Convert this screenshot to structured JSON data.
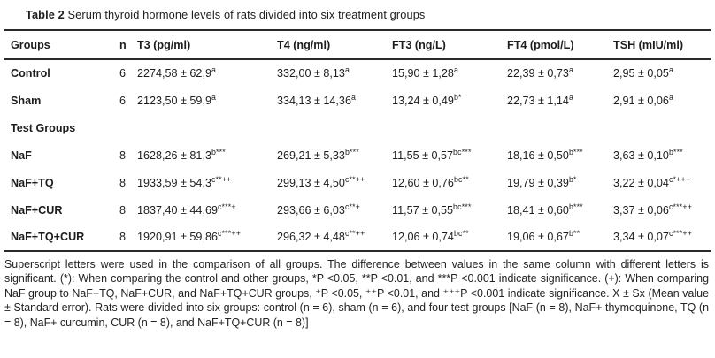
{
  "title": {
    "label": "Table 2",
    "text": " Serum thyroid hormone levels of rats divided into six treatment groups"
  },
  "table": {
    "columns": [
      "Groups",
      "n",
      "T3 (pg/ml)",
      "T4 (ng/ml)",
      "FT3 (ng/L)",
      "FT4 (pmol/L)",
      "TSH (mIU/ml)"
    ],
    "rows": [
      {
        "group": "Control",
        "section": false,
        "n": "6",
        "cells": [
          {
            "v": "2274,58 ± 62,9",
            "s": "a"
          },
          {
            "v": "332,00 ± 8,13",
            "s": "a"
          },
          {
            "v": "15,90 ± 1,28",
            "s": "a"
          },
          {
            "v": "22,39 ± 0,73",
            "s": "a"
          },
          {
            "v": "2,95 ± 0,05",
            "s": "a"
          }
        ]
      },
      {
        "group": "Sham",
        "section": false,
        "n": "6",
        "cells": [
          {
            "v": "2123,50 ± 59,9",
            "s": "a"
          },
          {
            "v": "334,13 ± 14,36",
            "s": "a"
          },
          {
            "v": "13,24 ± 0,49",
            "s": "b*"
          },
          {
            "v": "22,73 ± 1,14",
            "s": "a"
          },
          {
            "v": "2,91 ± 0,06",
            "s": "a"
          }
        ]
      },
      {
        "group": "Test Groups",
        "section": true,
        "n": "",
        "cells": []
      },
      {
        "group": "NaF",
        "section": false,
        "n": "8",
        "cells": [
          {
            "v": "1628,26 ± 81,3",
            "s": "b***"
          },
          {
            "v": "269,21 ± 5,33",
            "s": "b***"
          },
          {
            "v": "11,55 ± 0,57",
            "s": "bc***"
          },
          {
            "v": "18,16 ± 0,50",
            "s": "b***"
          },
          {
            "v": "3,63 ± 0,10",
            "s": "b***"
          }
        ]
      },
      {
        "group": "NaF+TQ",
        "section": false,
        "n": "8",
        "cells": [
          {
            "v": "1933,59 ± 54,3",
            "s": "c**++"
          },
          {
            "v": "299,13 ± 4,50",
            "s": "c**++"
          },
          {
            "v": "12,60 ± 0,76",
            "s": "bc**"
          },
          {
            "v": "19,79 ± 0,39",
            "s": "b*"
          },
          {
            "v": "3,22 ± 0,04",
            "s": "c*+++"
          }
        ]
      },
      {
        "group": "NaF+CUR",
        "section": false,
        "n": "8",
        "cells": [
          {
            "v": "1837,40 ± 44,69",
            "s": "c***+"
          },
          {
            "v": "293,66 ± 6,03",
            "s": "c**+"
          },
          {
            "v": "11,57 ± 0,55",
            "s": "bc***"
          },
          {
            "v": "18,41 ± 0,60",
            "s": "b***"
          },
          {
            "v": "3,37 ± 0,06",
            "s": "c***++"
          }
        ]
      },
      {
        "group": "NaF+TQ+CUR",
        "section": false,
        "n": "8",
        "cells": [
          {
            "v": "1920,91 ± 59,86",
            "s": "c***++"
          },
          {
            "v": "296,32 ± 4,48",
            "s": "c**++"
          },
          {
            "v": "12,06 ± 0,74",
            "s": "bc**"
          },
          {
            "v": "19,06 ± 0,67",
            "s": "b**"
          },
          {
            "v": "3,34 ± 0,07",
            "s": "c***++"
          }
        ]
      }
    ]
  },
  "footnote": "Superscript letters were used in the comparison of all groups. The difference between values in the same column with different letters is significant. (*): When comparing the control and other groups, *P <0.05, **P <0.01, and ***P <0.001 indicate significance. (+): When comparing NaF group to NaF+TQ, NaF+CUR, and NaF+TQ+CUR groups, ⁺P <0.05, ⁺⁺P <0.01, and ⁺⁺⁺P <0.001 indicate significance. X ± Sx (Mean value ± Standard error). Rats were divided into six groups: control (n = 6), sham (n = 6), and four test groups [NaF (n = 8), NaF+ thymoquinone, TQ (n = 8), NaF+ curcumin, CUR (n = 8), and NaF+TQ+CUR (n = 8)]"
}
